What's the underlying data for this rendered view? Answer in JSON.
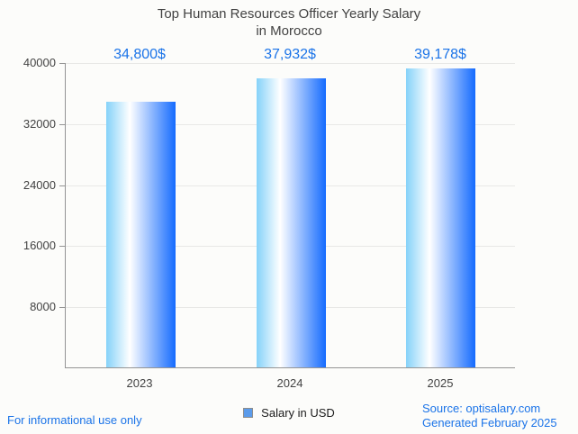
{
  "title": {
    "line1": "Top Human Resources Officer Yearly Salary",
    "line2": "in Morocco"
  },
  "chart_data": {
    "type": "bar",
    "title": "Top Human Resources Officer Yearly Salary in Morocco",
    "categories": [
      "2023",
      "2024",
      "2025"
    ],
    "values": [
      34800,
      37932,
      39178
    ],
    "value_labels": [
      "34,800$",
      "37,932$",
      "39,178$"
    ],
    "xlabel": "",
    "ylabel": "",
    "ylim": [
      0,
      40000
    ],
    "yticks": [
      8000,
      16000,
      24000,
      32000,
      40000
    ],
    "grid": true,
    "legend": {
      "label": "Salary in USD",
      "position": "bottom-center",
      "swatch_color": "#5b9bea"
    },
    "bar_gradient": {
      "left": "#85d2f9",
      "mid": "#ffffff",
      "mid_stop_pct": 34,
      "right": "#156bfe"
    }
  },
  "footer": {
    "left_note": "For informational use only",
    "source_line1": "Source: optisalary.com",
    "source_line2": "Generated February 2025"
  },
  "colors": {
    "accent_blue": "#1a73e8",
    "title_text": "#424242",
    "axis_text": "#424242",
    "gridline": "#e8e8e6",
    "axis_line": "#949494",
    "background": "#fcfcfa"
  }
}
